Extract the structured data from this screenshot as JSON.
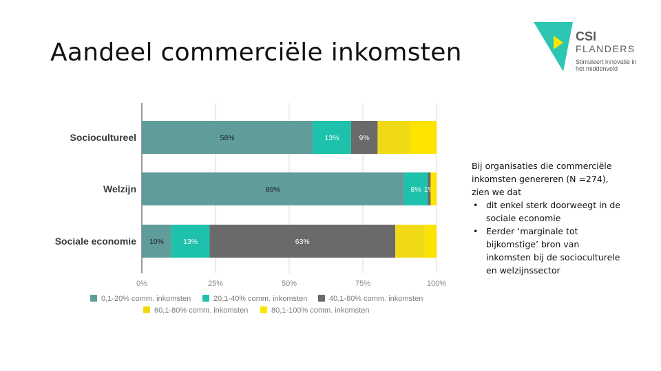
{
  "slide": {
    "title": "Aandeel commerciële inkomsten"
  },
  "logo": {
    "name": "CSI",
    "subname": "FLANDERS",
    "tagline": "Stimuleert innovatie in het middenveld",
    "colors": {
      "triangle": "#2cc6b2",
      "play": "#ffe600"
    }
  },
  "sidebar": {
    "intro": "Bij organisaties die commerciële inkomsten genereren (N =274), zien we dat",
    "bullets": [
      "dit enkel sterk doorweegt in de sociale economie",
      "Eerder ‘marginale tot bijkomstige’ bron van inkomsten bij de socioculturele en welzijnssector"
    ]
  },
  "chart_data": {
    "type": "bar",
    "orientation": "horizontal",
    "stacked": true,
    "title": "",
    "xlabel": "",
    "ylabel": "",
    "xlim": [
      0,
      100
    ],
    "x_ticks": [
      "0%",
      "25%",
      "50%",
      "75%",
      "100%"
    ],
    "grid": true,
    "legend_position": "bottom",
    "categories": [
      "Socioculturele",
      "Welzijn",
      "Sociale economie"
    ],
    "category_labels": [
      "Sociocultureel",
      "Welzijn",
      "Sociale economie"
    ],
    "series": [
      {
        "name": "0,1-20% comm. inkomsten",
        "color": "#5f9c9a",
        "values": [
          58,
          89,
          10
        ],
        "labels": [
          "58%",
          "89%",
          "10%"
        ]
      },
      {
        "name": "20,1-40% comm. inkomsten",
        "color": "#1ec1ac",
        "values": [
          13,
          8,
          13
        ],
        "labels": [
          "13%",
          "8%",
          "13%"
        ]
      },
      {
        "name": "40,1-60% comm. inkomsten",
        "color": "#6a6a6a",
        "values": [
          9,
          1,
          63
        ],
        "labels": [
          "9%",
          "1%",
          "63%"
        ]
      },
      {
        "name": "60,1-80% comm. inkomsten",
        "color": "#f0da16",
        "values": [
          11,
          0,
          10
        ],
        "labels": [
          "",
          "",
          ""
        ]
      },
      {
        "name": "80,1-100% comm. inkomsten",
        "color": "#fce300",
        "values": [
          9,
          2,
          4
        ],
        "labels": [
          "",
          "",
          ""
        ]
      }
    ]
  }
}
